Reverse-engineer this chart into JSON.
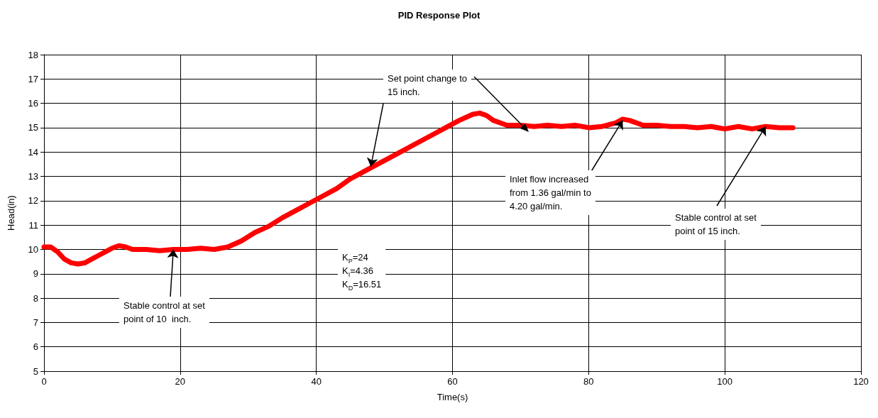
{
  "chart_data": {
    "type": "line",
    "title": "PID Response Plot",
    "xlabel": "Time(s)",
    "ylabel": "Head(in)",
    "x": [
      0,
      1,
      2,
      3,
      4,
      5,
      6,
      7,
      8,
      9,
      10,
      11,
      12,
      13,
      15,
      17,
      19,
      21,
      23,
      25,
      27,
      29,
      31,
      33,
      35,
      37,
      39,
      41,
      43,
      45,
      47,
      49,
      51,
      53,
      55,
      57,
      59,
      61,
      63,
      64,
      65,
      66,
      68,
      70,
      72,
      74,
      76,
      78,
      80,
      82,
      84,
      85,
      86,
      88,
      90,
      92,
      94,
      96,
      98,
      100,
      102,
      104,
      106,
      108,
      110
    ],
    "series": [
      {
        "color": "#ff0000",
        "values": [
          10.1,
          10.1,
          9.9,
          9.6,
          9.45,
          9.4,
          9.45,
          9.6,
          9.75,
          9.9,
          10.05,
          10.15,
          10.1,
          10.0,
          10.0,
          9.95,
          10.0,
          10.0,
          10.05,
          10.0,
          10.1,
          10.35,
          10.7,
          10.95,
          11.3,
          11.6,
          11.9,
          12.2,
          12.5,
          12.9,
          13.2,
          13.5,
          13.8,
          14.1,
          14.4,
          14.7,
          15.0,
          15.3,
          15.55,
          15.6,
          15.5,
          15.3,
          15.1,
          15.1,
          15.05,
          15.1,
          15.05,
          15.1,
          15.0,
          15.05,
          15.2,
          15.35,
          15.3,
          15.1,
          15.1,
          15.05,
          15.05,
          15.0,
          15.05,
          14.95,
          15.05,
          14.95,
          15.05,
          15.0,
          15.0
        ]
      }
    ],
    "xlim": [
      0,
      120
    ],
    "xticks": [
      0,
      20,
      40,
      60,
      80,
      100,
      120
    ],
    "ylim": [
      5,
      18
    ],
    "yticks": [
      5,
      6,
      7,
      8,
      9,
      10,
      11,
      12,
      13,
      14,
      15,
      16,
      17,
      18
    ],
    "grid": true,
    "marker": "none",
    "line_style": "solid",
    "annotations": [
      {
        "text": "Set point change to\n15 inch.",
        "x": 48,
        "y": 13.4
      },
      {
        "text": "Inlet flow increased\nfrom 1.36 gal/min to\n4.20 gal/min.",
        "x": 85,
        "y": 15.3
      },
      {
        "text": "Stable control at set\npoint of 15 inch.",
        "x": 106,
        "y": 15.05
      },
      {
        "text": "Stable control at set\npoint of 10  inch.",
        "x": 19,
        "y": 10.0
      },
      "K$_{P}$=24\nK$_{I}$=4.36\nK$_{D}$=16.51"
    ]
  }
}
